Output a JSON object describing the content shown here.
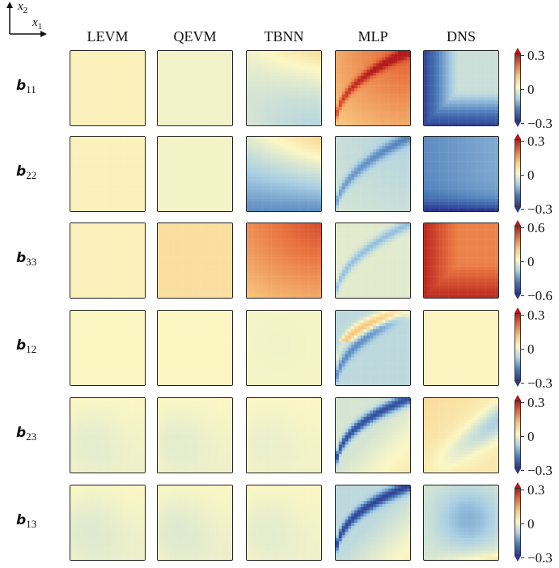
{
  "axis_indicator": {
    "vertical": "x",
    "vertical_sub": "2",
    "horizontal": "x",
    "horizontal_sub": "1"
  },
  "columns": [
    "LEVM",
    "QEVM",
    "TBNN",
    "MLP",
    "DNS"
  ],
  "rows": [
    {
      "symbol": "b",
      "sub": "11",
      "cbar": {
        "max": "0.3",
        "mid": "0",
        "min": "−0.3"
      }
    },
    {
      "symbol": "b",
      "sub": "22",
      "cbar": {
        "max": "0.3",
        "mid": "0",
        "min": "−0.3"
      }
    },
    {
      "symbol": "b",
      "sub": "33",
      "cbar": {
        "max": "0.6",
        "mid": "0",
        "min": "−0.6"
      }
    },
    {
      "symbol": "b",
      "sub": "12",
      "cbar": {
        "max": "0.3",
        "mid": "0",
        "min": "−0.3"
      }
    },
    {
      "symbol": "b",
      "sub": "23",
      "cbar": {
        "max": "0.3",
        "mid": "0",
        "min": "−0.3"
      }
    },
    {
      "symbol": "b",
      "sub": "13",
      "cbar": {
        "max": "0.3",
        "mid": "0",
        "min": "−0.3"
      }
    }
  ],
  "colormap": {
    "name": "RdYlBu_r",
    "stops": [
      "#2b3990",
      "#4a7ab8",
      "#a9cfe4",
      "#fbf7c4",
      "#f7c97f",
      "#e8703d",
      "#b31b1c"
    ]
  },
  "fields": [
    [
      {
        "base": 0.05,
        "mode": "flat"
      },
      {
        "base": -0.04,
        "mode": "flat"
      },
      {
        "base": -0.18,
        "mode": "tbnn11"
      },
      {
        "base": 0.2,
        "mode": "mlp11"
      },
      {
        "base": -0.3,
        "mode": "dns11"
      }
    ],
    [
      {
        "base": 0.04,
        "mode": "flat"
      },
      {
        "base": -0.03,
        "mode": "flat"
      },
      {
        "base": -0.12,
        "mode": "tbnn22"
      },
      {
        "base": -0.1,
        "mode": "mlp22"
      },
      {
        "base": -0.25,
        "mode": "dns22"
      }
    ],
    [
      {
        "base": 0.05,
        "mode": "flat"
      },
      {
        "base": 0.18,
        "mode": "flat"
      },
      {
        "base": 0.3,
        "mode": "tbnn33"
      },
      {
        "base": -0.05,
        "mode": "mlp33"
      },
      {
        "base": 0.5,
        "mode": "dns33"
      }
    ],
    [
      {
        "base": 0.01,
        "mode": "flat"
      },
      {
        "base": 0.01,
        "mode": "flat"
      },
      {
        "base": -0.04,
        "mode": "soft"
      },
      {
        "base": -0.1,
        "mode": "mlp12"
      },
      {
        "base": 0.02,
        "mode": "flat"
      }
    ],
    [
      {
        "base": -0.08,
        "mode": "corner"
      },
      {
        "base": -0.08,
        "mode": "corner"
      },
      {
        "base": -0.06,
        "mode": "corner"
      },
      {
        "base": -0.12,
        "mode": "mlp23"
      },
      {
        "base": -0.06,
        "mode": "dns23"
      }
    ],
    [
      {
        "base": -0.1,
        "mode": "corner"
      },
      {
        "base": -0.1,
        "mode": "corner"
      },
      {
        "base": -0.08,
        "mode": "corner"
      },
      {
        "base": -0.14,
        "mode": "mlp13"
      },
      {
        "base": -0.08,
        "mode": "dns13"
      }
    ]
  ]
}
